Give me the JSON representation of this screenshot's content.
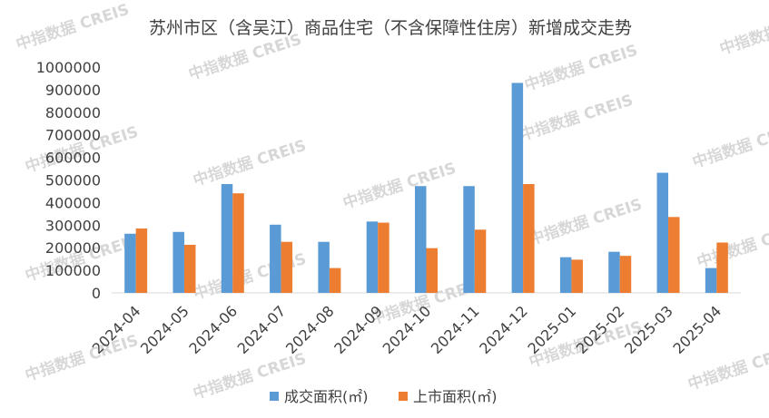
{
  "chart_data": {
    "type": "bar",
    "title": "苏州市区（含吴江）商品住宅（不含保障性住房）新增成交走势",
    "xlabel": "",
    "ylabel": "",
    "ylim": [
      0,
      1000000
    ],
    "yticks": [
      0,
      100000,
      200000,
      300000,
      400000,
      500000,
      600000,
      700000,
      800000,
      900000,
      1000000
    ],
    "ytick_labels": [
      "0",
      "100000",
      "200000",
      "300000",
      "400000",
      "500000",
      "600000",
      "700000",
      "800000",
      "900000",
      "1000000"
    ],
    "grid": false,
    "legend_position": "bottom",
    "categories": [
      "2024-04",
      "2024-05",
      "2024-06",
      "2024-07",
      "2024-08",
      "2024-09",
      "2024-10",
      "2024-11",
      "2024-12",
      "2025-01",
      "2025-02",
      "2025-03",
      "2025-04"
    ],
    "series": [
      {
        "name": "成交面积(㎡)",
        "color": "#5b9bd5",
        "values": [
          262000,
          270000,
          482000,
          302000,
          226000,
          316000,
          473000,
          473000,
          930000,
          158000,
          182000,
          532000,
          110000
        ]
      },
      {
        "name": "上市面积(㎡)",
        "color": "#ed7d31",
        "values": [
          285000,
          213000,
          441000,
          226000,
          110000,
          311000,
          198000,
          280000,
          482000,
          147000,
          164000,
          336000,
          223000
        ]
      }
    ]
  },
  "watermark": {
    "text": "中指数据 CREIS",
    "color": "#b8b8b8"
  }
}
